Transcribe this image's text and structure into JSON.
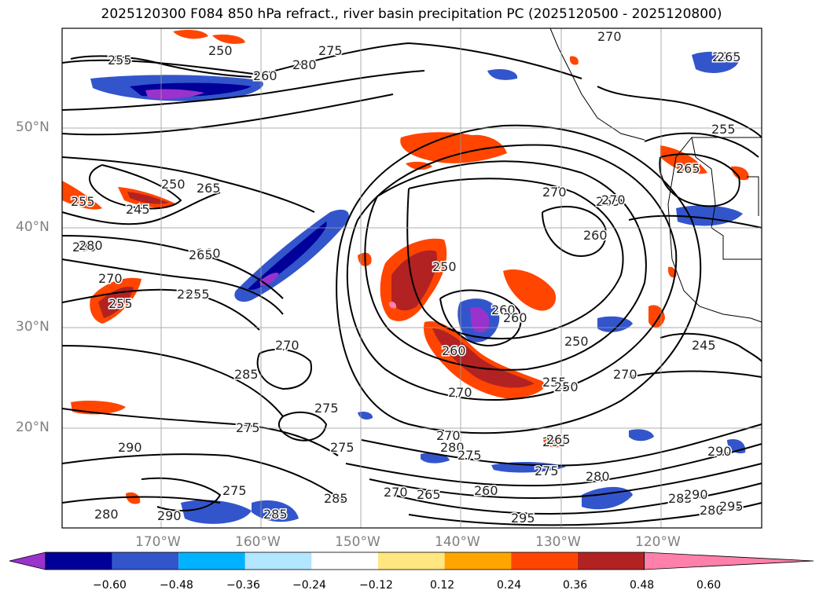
{
  "title": "2025120300 F084 850 hPa refract., river basin precipitation PC (2025120500 - 2025120800)",
  "lat_labels": [
    "50°N",
    "40°N",
    "30°N",
    "20°N"
  ],
  "lon_labels": [
    "170°W",
    "160°W",
    "150°W",
    "140°W",
    "130°W",
    "120°W"
  ],
  "colorbar": {
    "colors": [
      "#9933cc",
      "#000099",
      "#3355cc",
      "#00b2ff",
      "#b3e6ff",
      "#ffffff",
      "#ffe680",
      "#ffa500",
      "#ff4500",
      "#b22222",
      "#ff80aa"
    ],
    "tick_labels": [
      "−0.60",
      "−0.48",
      "−0.36",
      "−0.24",
      "−0.12",
      "0.12",
      "0.24",
      "0.36",
      "0.48",
      "0.60"
    ]
  },
  "contour_labels": [
    "255",
    "250",
    "260",
    "265",
    "280",
    "255",
    "270",
    "280",
    "255",
    "250",
    "245",
    "255",
    "260",
    "275",
    "280",
    "270",
    "265",
    "255",
    "260",
    "265",
    "270",
    "285",
    "255",
    "260",
    "270",
    "265",
    "275",
    "270",
    "290",
    "275",
    "285",
    "280",
    "290",
    "275",
    "285",
    "270",
    "275",
    "280",
    "265",
    "250",
    "260",
    "260",
    "270",
    "250",
    "255",
    "245",
    "275",
    "280",
    "265",
    "270",
    "265",
    "260",
    "275",
    "280",
    "285",
    "290",
    "295",
    "265",
    "270",
    "250",
    "265",
    "290",
    "295"
  ]
}
